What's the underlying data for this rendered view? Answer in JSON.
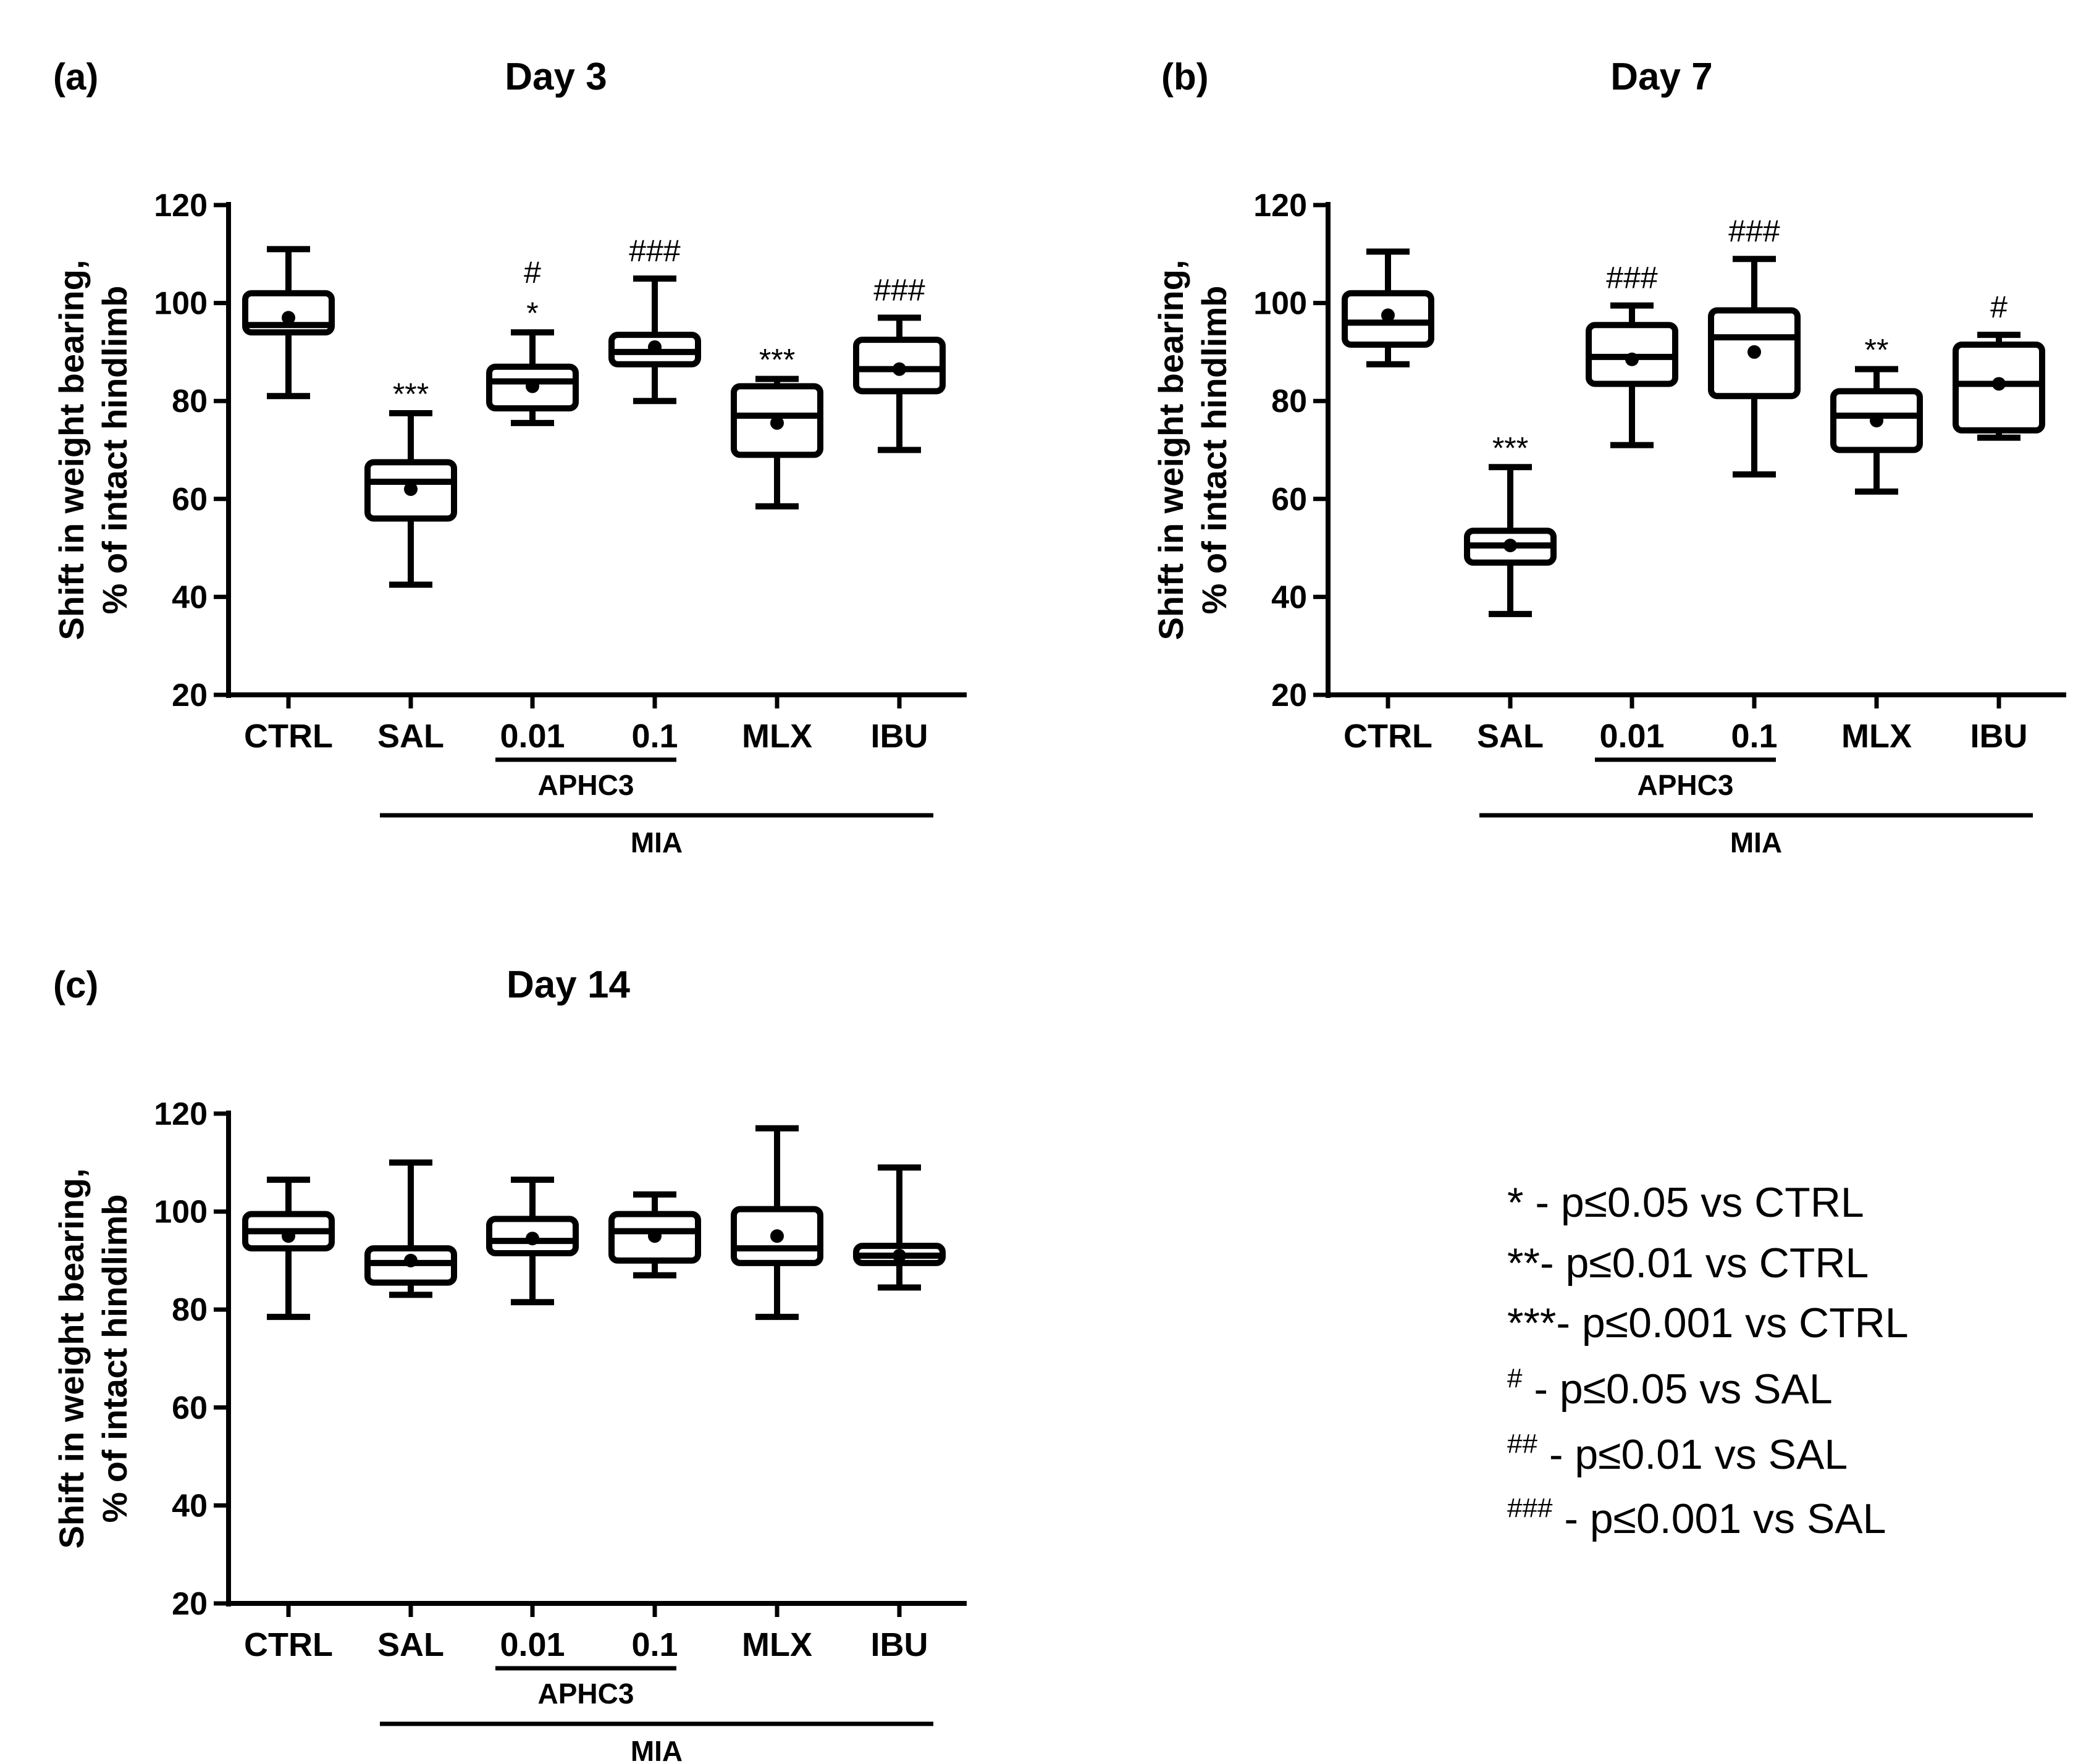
{
  "figure": {
    "legend": [
      {
        "sym": "*",
        "text": " - p≤0.05 vs CTRL",
        "sup": false
      },
      {
        "sym": "**",
        "text": "- p≤0.01 vs CTRL",
        "sup": false
      },
      {
        "sym": "***",
        "text": "- p≤0.001 vs CTRL",
        "sup": false
      },
      {
        "sym": "#",
        "text": " - p≤0.05 vs SAL",
        "sup": true
      },
      {
        "sym": "##",
        "text": " - p≤0.01 vs SAL",
        "sup": true
      },
      {
        "sym": "###",
        "text": " - p≤0.001 vs SAL",
        "sup": true
      }
    ]
  },
  "chart_data": [
    {
      "type": "box",
      "panel": "(a)",
      "title": "Day 3",
      "ylabel": [
        "Shift in weight bearing,",
        "% of intact hindlimb"
      ],
      "ylim": [
        20,
        120
      ],
      "yticks": [
        20,
        40,
        60,
        80,
        100,
        120
      ],
      "categories": [
        "CTRL",
        "SAL",
        "0.01",
        "0.1",
        "MLX",
        "IBU"
      ],
      "groups": [
        {
          "label": "APHC3",
          "from": 2,
          "to": 3
        },
        {
          "label": "MIA",
          "from": 1,
          "to": 5
        }
      ],
      "boxes": [
        {
          "min": 81,
          "q1": 94,
          "median": 95.5,
          "q3": 102,
          "max": 111,
          "mean": 97,
          "sig": []
        },
        {
          "min": 42.5,
          "q1": 56,
          "median": 63.5,
          "q3": 67.5,
          "max": 77.5,
          "mean": 62,
          "sig": [
            "***"
          ]
        },
        {
          "min": 75.5,
          "q1": 78.5,
          "median": 84,
          "q3": 87,
          "max": 94,
          "mean": 83,
          "sig": [
            "#",
            "*"
          ]
        },
        {
          "min": 80,
          "q1": 87.5,
          "median": 90,
          "q3": 93.5,
          "max": 105,
          "mean": 91,
          "sig": [
            "###"
          ]
        },
        {
          "min": 58.5,
          "q1": 69,
          "median": 77,
          "q3": 83,
          "max": 84.5,
          "mean": 75.5,
          "sig": [
            "***"
          ]
        },
        {
          "min": 70,
          "q1": 82,
          "median": 86.5,
          "q3": 92.5,
          "max": 97,
          "mean": 86.5,
          "sig": [
            "###"
          ]
        }
      ]
    },
    {
      "type": "box",
      "panel": "(b)",
      "title": "Day 7",
      "ylabel": [
        "Shift in weight bearing,",
        "% of intact hindlimb"
      ],
      "ylim": [
        20,
        120
      ],
      "yticks": [
        20,
        40,
        60,
        80,
        100,
        120
      ],
      "categories": [
        "CTRL",
        "SAL",
        "0.01",
        "0.1",
        "MLX",
        "IBU"
      ],
      "groups": [
        {
          "label": "APHC3",
          "from": 2,
          "to": 3
        },
        {
          "label": "MIA",
          "from": 1,
          "to": 5
        }
      ],
      "boxes": [
        {
          "min": 87.5,
          "q1": 91.5,
          "median": 96,
          "q3": 102,
          "max": 110.5,
          "mean": 97.5,
          "sig": []
        },
        {
          "min": 36.5,
          "q1": 47,
          "median": 50.5,
          "q3": 53.5,
          "max": 66.5,
          "mean": 50.5,
          "sig": [
            "***"
          ]
        },
        {
          "min": 71,
          "q1": 83.5,
          "median": 89,
          "q3": 95.5,
          "max": 99.5,
          "mean": 88.5,
          "sig": [
            "###"
          ]
        },
        {
          "min": 65,
          "q1": 81,
          "median": 93,
          "q3": 98.5,
          "max": 109,
          "mean": 90,
          "sig": [
            "###"
          ]
        },
        {
          "min": 61.5,
          "q1": 70,
          "median": 77,
          "q3": 82,
          "max": 86.5,
          "mean": 76,
          "sig": [
            "**"
          ]
        },
        {
          "min": 72.5,
          "q1": 74,
          "median": 83.5,
          "q3": 91.5,
          "max": 93.5,
          "mean": 83.5,
          "sig": [
            "#"
          ]
        }
      ]
    },
    {
      "type": "box",
      "panel": "(c)",
      "title": "Day 14",
      "ylabel": [
        "Shift in weight bearing,",
        "% of intact hindlimb"
      ],
      "ylim": [
        20,
        120
      ],
      "yticks": [
        20,
        40,
        60,
        80,
        100,
        120
      ],
      "categories": [
        "CTRL",
        "SAL",
        "0.01",
        "0.1",
        "MLX",
        "IBU"
      ],
      "groups": [
        {
          "label": "APHC3",
          "from": 2,
          "to": 3
        },
        {
          "label": "MIA",
          "from": 1,
          "to": 5
        }
      ],
      "boxes": [
        {
          "min": 78.5,
          "q1": 92.5,
          "median": 96,
          "q3": 99.5,
          "max": 106.5,
          "mean": 95,
          "sig": []
        },
        {
          "min": 83,
          "q1": 85.5,
          "median": 89.5,
          "q3": 92.5,
          "max": 110,
          "mean": 90,
          "sig": []
        },
        {
          "min": 81.5,
          "q1": 91.5,
          "median": 94,
          "q3": 98.5,
          "max": 106.5,
          "mean": 94.5,
          "sig": []
        },
        {
          "min": 87,
          "q1": 90,
          "median": 96,
          "q3": 99.5,
          "max": 103.5,
          "mean": 95,
          "sig": []
        },
        {
          "min": 78.5,
          "q1": 89.5,
          "median": 92.5,
          "q3": 100.5,
          "max": 117,
          "mean": 95,
          "sig": []
        },
        {
          "min": 84.5,
          "q1": 89.5,
          "median": 91,
          "q3": 93,
          "max": 109,
          "mean": 91,
          "sig": []
        }
      ]
    }
  ]
}
